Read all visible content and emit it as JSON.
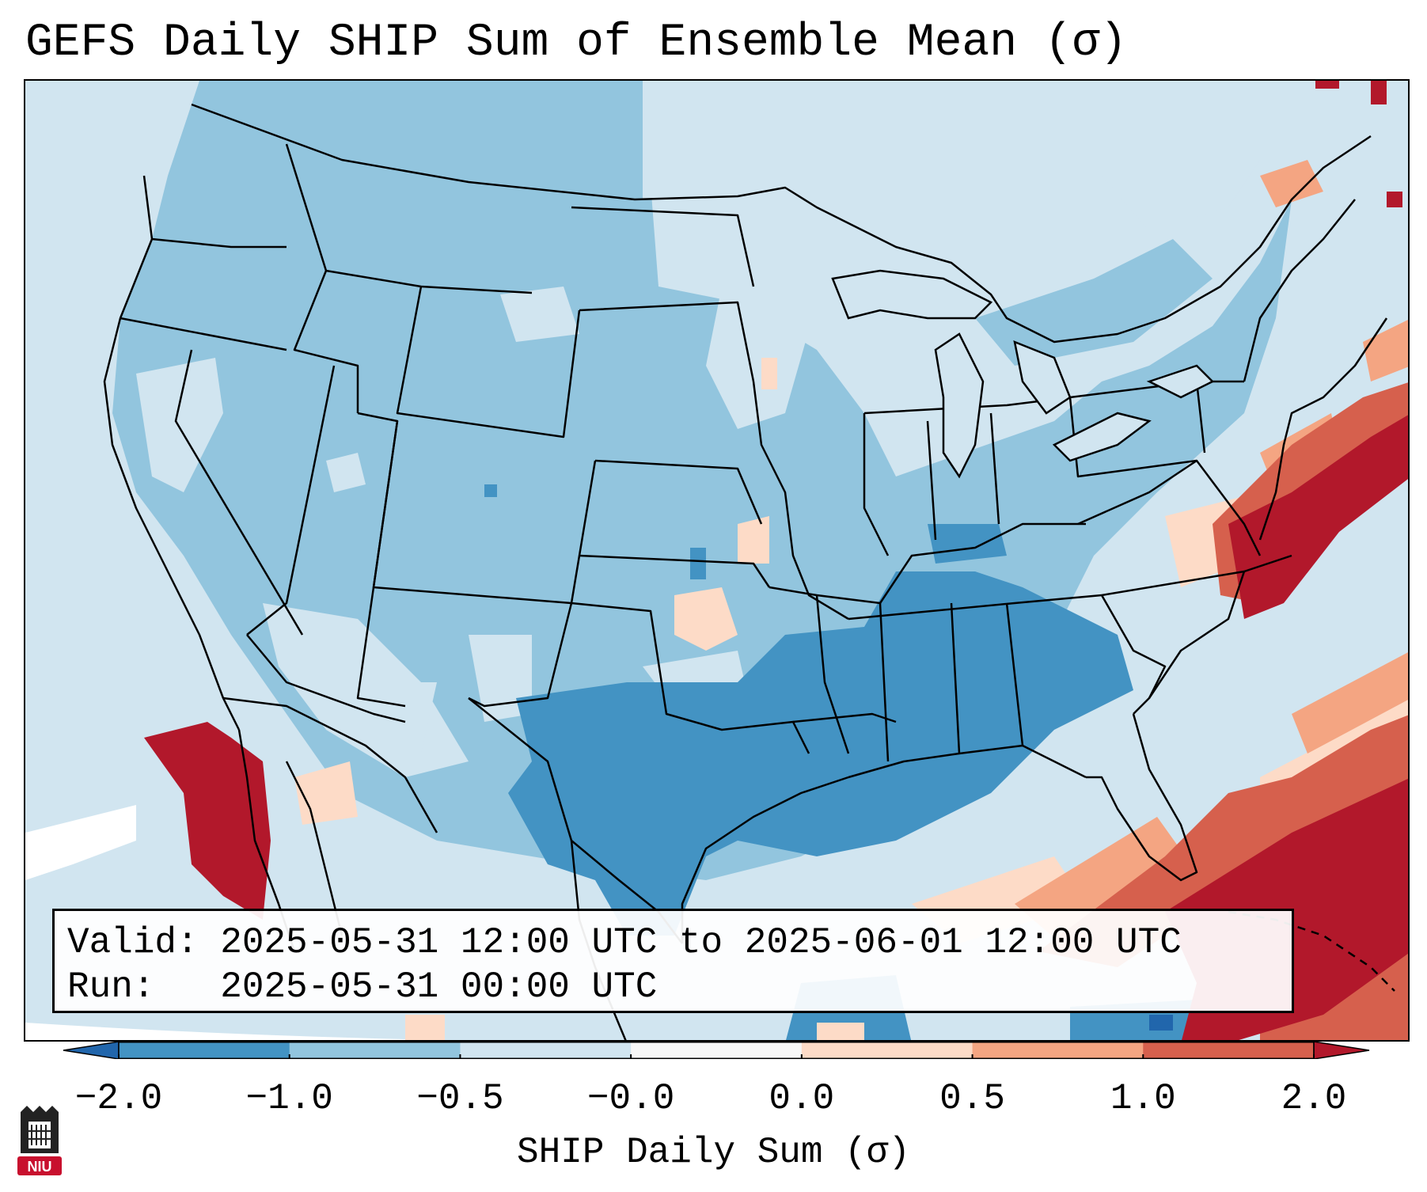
{
  "title": "GEFS Daily SHIP Sum of Ensemble Mean (σ)",
  "info": {
    "valid_line": "Valid: 2025-05-31 12:00 UTC to 2025-06-01 12:00 UTC",
    "run_line": "Run:   2025-05-31 00:00 UTC"
  },
  "colorbar": {
    "label": "SHIP Daily Sum (σ)",
    "ticks": [
      "−2.0",
      "−1.0",
      "−0.5",
      "−0.0",
      "0.0",
      "0.5",
      "1.0",
      "2.0"
    ],
    "bins": [
      {
        "range": "< -2.0",
        "color": "#2166ac"
      },
      {
        "range": "-2.0 to -1.0",
        "color": "#4393c3"
      },
      {
        "range": "-1.0 to -0.5",
        "color": "#92c5de"
      },
      {
        "range": "-0.5 to -0.0",
        "color": "#d1e5f0"
      },
      {
        "range": "-0.0 to 0.0",
        "color": "#f7f7f7"
      },
      {
        "range": "0.0 to 0.5",
        "color": "#fddbc7"
      },
      {
        "range": "0.5 to 1.0",
        "color": "#f4a582"
      },
      {
        "range": "1.0 to 2.0",
        "color": "#d6604d"
      },
      {
        "range": "> 2.0",
        "color": "#b2182b"
      }
    ]
  },
  "logo": {
    "text": "NIU",
    "color": "#c8102e"
  },
  "map": {
    "projection": "Lambert conformal",
    "region": "Contiguous United States",
    "features": [
      "state-borders",
      "coastlines",
      "great-lakes"
    ]
  }
}
